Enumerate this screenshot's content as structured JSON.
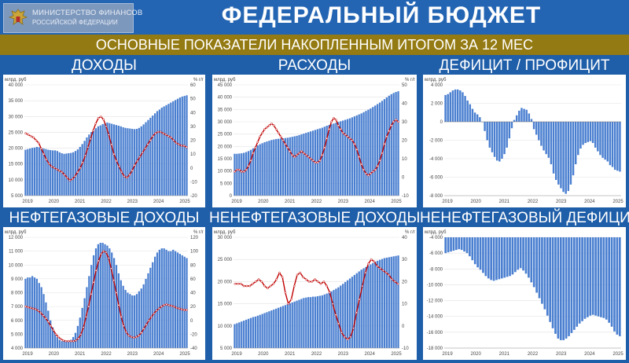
{
  "header": {
    "title": "ФЕДЕРАЛЬНЫЙ БЮДЖЕТ",
    "logo_line1": "МИНИСТЕРСТВО ФИНАНСОВ",
    "logo_line2": "РОССИЙСКОЙ ФЕДЕРАЦИИ",
    "subtitle": "ОСНОВНЫЕ ПОКАЗАТЕЛИ НАКОПЛЕННЫМ ИТОГОМ ЗА 12 МЕС"
  },
  "colors": {
    "bar": "#4a7fd0",
    "line": "#c00000",
    "header": "#2465b3",
    "band": "#947a12"
  },
  "chart_data": [
    {
      "id": "dohody",
      "type": "bar",
      "title": "ДОХОДЫ",
      "ylabel": "млрд. руб",
      "y2label": "% г/г",
      "ylim": [
        5000,
        40000
      ],
      "yticks": [
        5000,
        10000,
        15000,
        20000,
        25000,
        30000,
        35000,
        40000
      ],
      "y2lim": [
        -20,
        60
      ],
      "y2ticks": [
        -20,
        -10,
        0,
        10,
        20,
        30,
        40,
        50,
        60
      ],
      "xticks": [
        "2019",
        "2020",
        "2021",
        "2022",
        "2023",
        "2024",
        "2025"
      ],
      "bars": [
        19500,
        19700,
        19900,
        20100,
        20200,
        20400,
        20300,
        20100,
        19900,
        19700,
        19500,
        19400,
        19300,
        19300,
        19100,
        18700,
        18400,
        18200,
        18300,
        18400,
        18500,
        18700,
        19100,
        19600,
        20400,
        21300,
        22300,
        23400,
        24300,
        25100,
        25700,
        26300,
        26900,
        27200,
        27600,
        27800,
        28100,
        27900,
        27700,
        27500,
        27300,
        27100,
        26900,
        26600,
        26400,
        26300,
        26200,
        26100,
        26000,
        26100,
        26400,
        26900,
        27500,
        28200,
        28900,
        29600,
        30300,
        31000,
        31700,
        32200,
        32800,
        33200,
        33600,
        34000,
        34400,
        34800,
        35200,
        35600,
        36000,
        36300,
        36500,
        36700
      ],
      "line": [
        25,
        24,
        23,
        22,
        20,
        18,
        14,
        10,
        6,
        3,
        1,
        0,
        -1,
        -2,
        -3,
        -5,
        -7,
        -9,
        -8,
        -6,
        -3,
        0,
        4,
        9,
        15,
        21,
        27,
        32,
        36,
        37,
        35,
        30,
        24,
        17,
        10,
        5,
        1,
        -3,
        -6,
        -7,
        -5,
        -2,
        2,
        5,
        8,
        11,
        14,
        17,
        20,
        23,
        25,
        26,
        26,
        25,
        24,
        23,
        22,
        20,
        18,
        17,
        16,
        16,
        15
      ]
    },
    {
      "id": "raskhody",
      "type": "bar",
      "title": "РАСХОДЫ",
      "ylabel": "млрд. руб",
      "y2label": "% г/г",
      "ylim": [
        0,
        45000
      ],
      "yticks": [
        0,
        5000,
        10000,
        15000,
        20000,
        25000,
        30000,
        35000,
        40000,
        45000
      ],
      "y2lim": [
        -10,
        50
      ],
      "y2ticks": [
        -10,
        0,
        10,
        20,
        30,
        40,
        50
      ],
      "xticks": [
        "2019",
        "2020",
        "2021",
        "2022",
        "2023",
        "2024",
        "2025"
      ],
      "bars": [
        17000,
        17000,
        17100,
        17200,
        17400,
        17700,
        18100,
        18600,
        19200,
        19800,
        20400,
        20900,
        21300,
        21700,
        22000,
        22300,
        22600,
        22800,
        23000,
        23100,
        23200,
        23300,
        23400,
        23500,
        23700,
        23900,
        24100,
        24300,
        24600,
        24900,
        25200,
        25500,
        25800,
        26100,
        26400,
        26700,
        27000,
        27300,
        27600,
        28000,
        28400,
        28700,
        29000,
        29300,
        29600,
        29900,
        30200,
        30500,
        30800,
        31100,
        31400,
        31800,
        32200,
        32600,
        33000,
        33400,
        33900,
        34400,
        34900,
        35400,
        36000,
        36600,
        37200,
        37800,
        38500,
        39200,
        39900,
        40600,
        41200,
        41700,
        42100,
        42400
      ],
      "line": [
        3,
        4,
        4,
        3,
        3,
        4,
        6,
        9,
        13,
        16,
        19,
        22,
        24,
        26,
        27,
        28,
        29,
        28,
        26,
        24,
        22,
        20,
        18,
        16,
        14,
        12,
        11,
        12,
        13,
        14,
        13,
        12,
        11,
        10,
        9,
        8,
        8,
        9,
        12,
        16,
        21,
        26,
        30,
        32,
        31,
        28,
        26,
        24,
        23,
        22,
        21,
        20,
        18,
        15,
        11,
        7,
        4,
        2,
        1,
        2,
        3,
        4,
        6,
        9,
        13,
        18,
        22,
        25,
        28,
        30,
        31,
        30
      ]
    },
    {
      "id": "deficit",
      "type": "bar",
      "title": "ДЕФИЦИТ / ПРОФИЦИТ",
      "ylabel": "млрд. руб",
      "ylim": [
        -8000,
        4000
      ],
      "yticks": [
        -8000,
        -6000,
        -4000,
        -2000,
        0,
        2000,
        4000
      ],
      "xticks": [
        "2019",
        "2020",
        "2021",
        "2022",
        "2023",
        "2024",
        "2025"
      ],
      "bars": [
        2900,
        3000,
        3200,
        3400,
        3500,
        3500,
        3400,
        3200,
        2800,
        2300,
        1900,
        1400,
        1000,
        800,
        500,
        0,
        -1000,
        -2000,
        -2800,
        -3300,
        -3800,
        -4200,
        -4300,
        -4000,
        -3500,
        -2800,
        -1800,
        -700,
        200,
        700,
        1200,
        1500,
        1400,
        1300,
        900,
        300,
        -800,
        -1400,
        -2000,
        -2600,
        -3100,
        -3500,
        -3900,
        -4600,
        -5600,
        -6300,
        -6800,
        -7200,
        -7600,
        -7800,
        -7500,
        -6800,
        -5800,
        -4600,
        -3600,
        -2900,
        -2500,
        -2300,
        -2200,
        -2100,
        -2300,
        -2800,
        -3200,
        -3600,
        -3900,
        -4100,
        -4300,
        -4700,
        -4900,
        -5200,
        -5300,
        -5400
      ]
    },
    {
      "id": "neftegaz",
      "type": "bar",
      "title": "НЕФТЕГАЗОВЫЕ ДОХОДЫ",
      "ylabel": "млрд. руб",
      "y2label": "% г/г",
      "ylim": [
        4000,
        12000
      ],
      "yticks": [
        4000,
        5000,
        6000,
        7000,
        8000,
        9000,
        10000,
        11000,
        12000
      ],
      "y2lim": [
        -40,
        120
      ],
      "y2ticks": [
        -40,
        -20,
        0,
        20,
        40,
        60,
        80,
        100,
        120
      ],
      "xticks": [
        "2019",
        "2020",
        "2021",
        "2022",
        "2023",
        "2024",
        "2025"
      ],
      "bars": [
        9000,
        9100,
        9100,
        9200,
        9100,
        9000,
        8700,
        8400,
        7900,
        7300,
        6700,
        6000,
        5500,
        5100,
        4800,
        4600,
        4500,
        4500,
        4500,
        4500,
        4600,
        4800,
        5100,
        5600,
        6200,
        6900,
        7600,
        8400,
        9200,
        10000,
        10700,
        11200,
        11500,
        11600,
        11600,
        11500,
        11400,
        11200,
        10900,
        10500,
        10000,
        9400,
        8900,
        8500,
        8200,
        8000,
        7900,
        7800,
        7800,
        7900,
        8100,
        8300,
        8600,
        9000,
        9400,
        9800,
        10200,
        10600,
        10900,
        11100,
        11200,
        11200,
        11100,
        11000,
        11000,
        11100,
        11000,
        10900,
        10800,
        10700,
        10600,
        10500
      ],
      "line": [
        20,
        19,
        18,
        17,
        16,
        14,
        11,
        7,
        3,
        -2,
        -8,
        -14,
        -20,
        -24,
        -27,
        -29,
        -30,
        -30,
        -30,
        -30,
        -29,
        -26,
        -20,
        -10,
        5,
        20,
        38,
        55,
        72,
        86,
        96,
        100,
        98,
        90,
        75,
        58,
        40,
        22,
        5,
        -8,
        -17,
        -22,
        -24,
        -25,
        -24,
        -22,
        -18,
        -12,
        -6,
        0,
        5,
        10,
        14,
        17,
        20,
        22,
        23,
        22,
        21,
        20,
        18,
        17,
        16,
        15,
        15
      ]
    },
    {
      "id": "neneftegaz",
      "type": "bar",
      "title": "НЕНЕФТЕГАЗОВЫЕ ДОХОДЫ",
      "ylabel": "млрд. руб",
      "y2label": "% г/г",
      "ylim": [
        5000,
        30000
      ],
      "yticks": [
        5000,
        10000,
        15000,
        20000,
        25000,
        30000
      ],
      "y2lim": [
        -10,
        40
      ],
      "y2ticks": [
        -10,
        0,
        10,
        20,
        30,
        40
      ],
      "xticks": [
        "2019",
        "2020",
        "2021",
        "2022",
        "2023",
        "2024",
        "2025"
      ],
      "bars": [
        10400,
        10600,
        10800,
        11000,
        11200,
        11400,
        11600,
        11800,
        12000,
        12100,
        12300,
        12500,
        12700,
        12900,
        13100,
        13300,
        13500,
        13700,
        13900,
        14100,
        14300,
        14500,
        14700,
        14900,
        15100,
        15300,
        15500,
        15700,
        15900,
        16100,
        16300,
        16400,
        16500,
        16500,
        16600,
        16600,
        16700,
        16800,
        16900,
        17100,
        17300,
        17500,
        17800,
        18100,
        18400,
        18700,
        19100,
        19500,
        19900,
        20300,
        20700,
        21100,
        21500,
        21900,
        22300,
        22700,
        23000,
        23300,
        23600,
        23900,
        24200,
        24500,
        24700,
        24900,
        25100,
        25300,
        25400,
        25500,
        25600,
        25700,
        25800,
        25900
      ],
      "line": [
        19,
        19,
        19,
        18,
        18,
        18,
        19,
        20,
        21,
        20,
        18,
        17,
        18,
        19,
        21,
        24,
        22,
        15,
        10,
        12,
        18,
        23,
        24,
        22,
        21,
        20,
        20,
        21,
        20,
        19,
        20,
        18,
        15,
        10,
        5,
        1,
        -3,
        -5,
        -6,
        -5,
        -1,
        6,
        12,
        18,
        24,
        28,
        30,
        29,
        27,
        26,
        25,
        24,
        23,
        21,
        20,
        19
      ]
    },
    {
      "id": "neneft_deficit",
      "type": "bar",
      "title": "НЕНЕФТЕГАЗОВЫЙ ДЕФИЦИТ",
      "ylabel": "млрд. руб",
      "ylim": [
        -18000,
        -4000
      ],
      "yticks": [
        -18000,
        -16000,
        -14000,
        -12000,
        -10000,
        -8000,
        -6000,
        -4000
      ],
      "xticks": [
        "2019",
        "2020",
        "2021",
        "2022",
        "2023",
        "2024",
        "2025"
      ],
      "bars": [
        -6000,
        -5900,
        -5800,
        -5700,
        -5600,
        -5500,
        -5600,
        -5800,
        -6000,
        -6400,
        -6900,
        -7400,
        -7800,
        -8100,
        -8500,
        -8900,
        -9200,
        -9400,
        -9500,
        -9400,
        -9300,
        -9200,
        -9100,
        -9000,
        -8900,
        -8700,
        -8400,
        -8100,
        -7900,
        -8200,
        -8600,
        -9100,
        -9700,
        -10300,
        -11000,
        -11700,
        -12400,
        -13100,
        -13900,
        -14700,
        -15500,
        -16200,
        -16800,
        -17000,
        -17000,
        -16800,
        -16500,
        -16100,
        -15700,
        -15300,
        -14900,
        -14600,
        -14300,
        -14100,
        -13900,
        -13800,
        -13900,
        -14000,
        -14100,
        -14200,
        -14400,
        -14800,
        -15300,
        -15900,
        -16300,
        -16500
      ]
    }
  ]
}
